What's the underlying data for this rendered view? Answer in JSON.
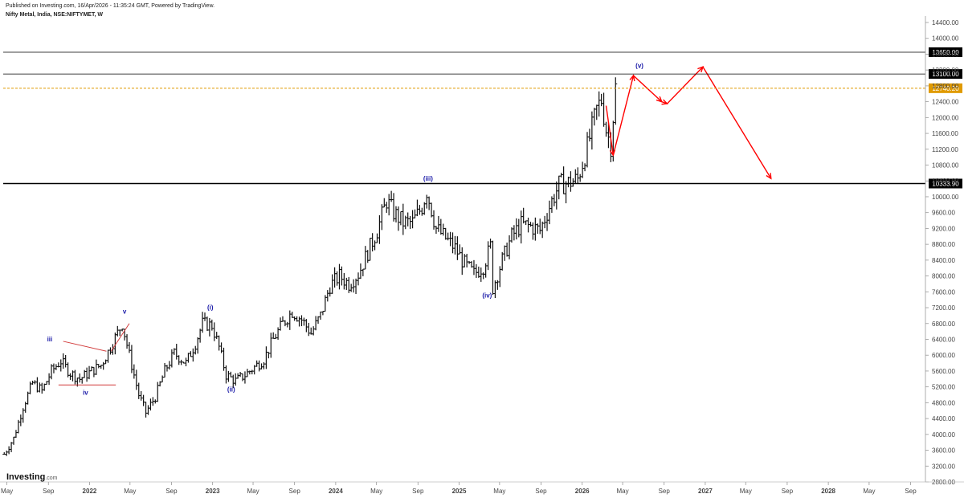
{
  "header": {
    "published": "Published on Investing.com, 16/Apr/2026 - 11:35:24 GMT, Powered by TradingView.",
    "symbol": "Nifty Metal, India, NSE:NIFTYMET, W"
  },
  "logo": {
    "brand": "Investing",
    "suffix": ".com"
  },
  "colors": {
    "bar": "#111111",
    "level_line": "#000000",
    "current_line": "#e09a00",
    "current_label_bg": "#e09a00",
    "level_label_bg": "#000000",
    "wave_label": "#1a1aa8",
    "annotation_red": "#ff0000",
    "triangle_line": "#d23c3c",
    "axis_text": "#444444"
  },
  "chart_data": {
    "type": "ohlc",
    "period": "weekly",
    "ylim": [
      2800,
      14400
    ],
    "yticks": [
      "2800.00",
      "3200.00",
      "3600.00",
      "4000.00",
      "4400.00",
      "4800.00",
      "5200.00",
      "5600.00",
      "6000.00",
      "6400.00",
      "6800.00",
      "7200.00",
      "7600.00",
      "8000.00",
      "8400.00",
      "8800.00",
      "9200.00",
      "9600.00",
      "10000.00",
      "10400.00",
      "10800.00",
      "11200.00",
      "11600.00",
      "12000.00",
      "12400.00",
      "12800.00",
      "13200.00",
      "13600.00",
      "14000.00",
      "14400.00"
    ],
    "xlim": [
      "2021-04-20",
      "2028-10-15"
    ],
    "xticks": [
      {
        "label": "May",
        "date": "2021-05-01"
      },
      {
        "label": "Sep",
        "date": "2021-09-01"
      },
      {
        "label": "2022",
        "date": "2022-01-01",
        "bold": true
      },
      {
        "label": "May",
        "date": "2022-05-01"
      },
      {
        "label": "Sep",
        "date": "2022-09-01"
      },
      {
        "label": "2023",
        "date": "2023-01-01",
        "bold": true
      },
      {
        "label": "May",
        "date": "2023-05-01"
      },
      {
        "label": "Sep",
        "date": "2023-09-01"
      },
      {
        "label": "2024",
        "date": "2024-01-01",
        "bold": true
      },
      {
        "label": "May",
        "date": "2024-05-01"
      },
      {
        "label": "Sep",
        "date": "2024-09-01"
      },
      {
        "label": "2025",
        "date": "2025-01-01",
        "bold": true
      },
      {
        "label": "May",
        "date": "2025-05-01"
      },
      {
        "label": "Sep",
        "date": "2025-09-01"
      },
      {
        "label": "2026",
        "date": "2026-01-01",
        "bold": true
      },
      {
        "label": "May",
        "date": "2026-05-01"
      },
      {
        "label": "Sep",
        "date": "2026-09-01"
      },
      {
        "label": "2027",
        "date": "2027-01-01",
        "bold": true
      },
      {
        "label": "May",
        "date": "2027-05-01"
      },
      {
        "label": "Sep",
        "date": "2027-09-01"
      },
      {
        "label": "2028",
        "date": "2028-01-01",
        "bold": true
      },
      {
        "label": "May",
        "date": "2028-05-01"
      },
      {
        "label": "Sep",
        "date": "2028-09-01"
      }
    ],
    "price_path": [
      [
        "2021-04-23",
        3500
      ],
      [
        "2021-05-21",
        3900
      ],
      [
        "2021-06-18",
        4700
      ],
      [
        "2021-07-16",
        5300
      ],
      [
        "2021-08-13",
        5100
      ],
      [
        "2021-09-10",
        5600
      ],
      [
        "2021-10-08",
        5850
      ],
      [
        "2021-11-05",
        5550
      ],
      [
        "2021-12-03",
        5400
      ],
      [
        "2022-01-07",
        5600
      ],
      [
        "2022-02-04",
        5750
      ],
      [
        "2022-03-04",
        6200
      ],
      [
        "2022-04-08",
        6800
      ],
      [
        "2022-04-29",
        6000
      ],
      [
        "2022-05-27",
        5000
      ],
      [
        "2022-06-17",
        4550
      ],
      [
        "2022-07-15",
        4950
      ],
      [
        "2022-08-12",
        5600
      ],
      [
        "2022-09-09",
        6050
      ],
      [
        "2022-10-14",
        5800
      ],
      [
        "2022-11-11",
        6300
      ],
      [
        "2022-12-02",
        6800
      ],
      [
        "2022-12-30",
        6750
      ],
      [
        "2023-01-20",
        6200
      ],
      [
        "2023-02-10",
        5500
      ],
      [
        "2023-03-10",
        5350
      ],
      [
        "2023-04-07",
        5500
      ],
      [
        "2023-05-05",
        5700
      ],
      [
        "2023-06-02",
        5900
      ],
      [
        "2023-06-30",
        6400
      ],
      [
        "2023-07-28",
        6800
      ],
      [
        "2023-08-25",
        7100
      ],
      [
        "2023-09-22",
        6900
      ],
      [
        "2023-10-20",
        6550
      ],
      [
        "2023-11-17",
        7000
      ],
      [
        "2023-12-15",
        7750
      ],
      [
        "2024-01-12",
        8000
      ],
      [
        "2024-02-09",
        7800
      ],
      [
        "2024-03-08",
        8050
      ],
      [
        "2024-04-05",
        8600
      ],
      [
        "2024-05-03",
        9150
      ],
      [
        "2024-05-31",
        9900
      ],
      [
        "2024-06-21",
        9600
      ],
      [
        "2024-07-19",
        9350
      ],
      [
        "2024-08-16",
        9350
      ],
      [
        "2024-09-13",
        9750
      ],
      [
        "2024-09-27",
        10150
      ],
      [
        "2024-10-25",
        9200
      ],
      [
        "2024-11-22",
        8950
      ],
      [
        "2024-12-20",
        8700
      ],
      [
        "2025-01-17",
        8300
      ],
      [
        "2025-02-14",
        8050
      ],
      [
        "2025-03-14",
        8250
      ],
      [
        "2025-04-04",
        8750
      ],
      [
        "2025-04-11",
        7700
      ],
      [
        "2025-05-09",
        8400
      ],
      [
        "2025-06-06",
        9000
      ],
      [
        "2025-07-04",
        9300
      ],
      [
        "2025-08-01",
        9250
      ],
      [
        "2025-08-29",
        9150
      ],
      [
        "2025-09-26",
        9750
      ],
      [
        "2025-10-24",
        10300
      ],
      [
        "2025-11-21",
        10350
      ],
      [
        "2025-12-19",
        10450
      ],
      [
        "2026-01-16",
        11250
      ],
      [
        "2026-02-13",
        12200
      ],
      [
        "2026-02-27",
        12450
      ],
      [
        "2026-03-13",
        11700
      ],
      [
        "2026-03-27",
        11300
      ],
      [
        "2026-04-10",
        12750
      ]
    ],
    "levels": [
      {
        "value": 13650,
        "label": "13650.00",
        "style": "solid",
        "width": 0.8
      },
      {
        "value": 13100,
        "label": "13100.00",
        "style": "solid",
        "width": 0.8
      },
      {
        "value": 12740.2,
        "label": "12740.20",
        "style": "dashed",
        "width": 1,
        "current": true
      },
      {
        "value": 10333.9,
        "label": "10333.90",
        "style": "solid",
        "width": 1.4
      }
    ],
    "wave_labels": [
      {
        "text": "v",
        "date": "2022-04-15",
        "price": 7050,
        "small": true
      },
      {
        "text": "iii",
        "date": "2021-09-05",
        "price": 6350,
        "small": true
      },
      {
        "text": "iv",
        "date": "2021-12-20",
        "price": 5000,
        "small": true
      },
      {
        "text": "(i)",
        "date": "2022-12-25",
        "price": 7150
      },
      {
        "text": "(ii)",
        "date": "2023-02-25",
        "price": 5080
      },
      {
        "text": "(iii)",
        "date": "2024-10-01",
        "price": 10400
      },
      {
        "text": "(iv)",
        "date": "2025-03-25",
        "price": 7450
      },
      {
        "text": "(v)",
        "date": "2026-06-20",
        "price": 13250
      }
    ],
    "projection_path": [
      [
        "2026-03-13",
        12300
      ],
      [
        "2026-04-03",
        11050
      ],
      [
        "2026-06-02",
        13060
      ],
      [
        "2026-08-25",
        12400
      ],
      [
        "2026-09-10",
        12350
      ],
      [
        "2026-12-25",
        13280
      ],
      [
        "2027-07-15",
        10460
      ]
    ],
    "triangle": {
      "upper": [
        [
          "2021-10-15",
          6350
        ],
        [
          "2022-02-20",
          6100
        ]
      ],
      "lower": [
        [
          "2021-10-01",
          5250
        ],
        [
          "2022-03-20",
          5250
        ]
      ],
      "apex_leg": [
        [
          "2022-03-06",
          6100
        ],
        [
          "2022-04-29",
          6800
        ]
      ]
    }
  }
}
